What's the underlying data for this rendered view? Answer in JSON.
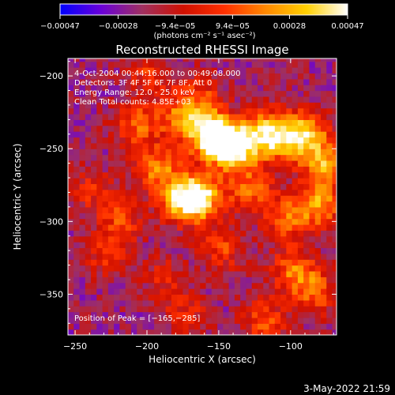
{
  "chart_data": {
    "type": "heatmap",
    "title": "Reconstructed RHESSI Image",
    "xlabel": "Heliocentric X (arcsec)",
    "ylabel": "Heliocentric Y (arcsec)",
    "xlim": [
      -255,
      -68
    ],
    "ylim": [
      -378,
      -188
    ],
    "x_ticks": [
      -250,
      -200,
      -150,
      -100
    ],
    "x_tick_labels": [
      "−250",
      "−200",
      "−150",
      "−100"
    ],
    "y_ticks": [
      -200,
      -250,
      -300,
      -350
    ],
    "y_tick_labels": [
      "−200",
      "−250",
      "−300",
      "−350"
    ],
    "colorbar": {
      "min": -0.00047,
      "max": 0.00047,
      "ticks": [
        -0.00047,
        -0.00028,
        -9.4e-05,
        9.4e-05,
        0.00028,
        0.00047
      ],
      "tick_labels": [
        "−0.00047",
        "−0.00028",
        "−9.4e−05",
        "9.4e−05",
        "0.00028",
        "0.00047"
      ],
      "units_label": "(photons cm⁻² s⁻¹ asec⁻²)",
      "colormap": [
        "#0000ff",
        "#6a00d8",
        "#a03060",
        "#d01000",
        "#ff3000",
        "#ff8800",
        "#ffd000",
        "#ffffff"
      ]
    },
    "info_lines": [
      " 4-Oct-2004 00:44:16.000 to 00:49:08.000",
      "Detectors: 3F 4F 5F 6F 7F 8F, Att 0",
      "Energy Range: 12.0 - 25.0 keV",
      "Clean     Total counts: 4.85E+03"
    ],
    "peak_label": "Position of Peak = [−165,−285]",
    "peak": [
      -165,
      -285
    ],
    "emission_blobs": [
      {
        "x": -165,
        "y": -285,
        "amp": 1.0
      },
      {
        "x": -178,
        "y": -287,
        "amp": 0.8
      },
      {
        "x": -150,
        "y": -247,
        "amp": 0.9
      },
      {
        "x": -160,
        "y": -240,
        "amp": 0.85
      },
      {
        "x": -138,
        "y": -252,
        "amp": 0.8
      },
      {
        "x": -120,
        "y": -240,
        "amp": 0.75
      },
      {
        "x": -105,
        "y": -245,
        "amp": 0.7
      },
      {
        "x": -90,
        "y": -240,
        "amp": 0.65
      },
      {
        "x": -78,
        "y": -262,
        "amp": 0.8
      },
      {
        "x": -82,
        "y": -290,
        "amp": 0.75
      },
      {
        "x": -130,
        "y": -280,
        "amp": 0.6
      },
      {
        "x": -105,
        "y": -300,
        "amp": 0.55
      },
      {
        "x": -100,
        "y": -335,
        "amp": 0.6
      },
      {
        "x": -85,
        "y": -350,
        "amp": 0.55
      },
      {
        "x": -195,
        "y": -265,
        "amp": 0.7
      },
      {
        "x": -210,
        "y": -235,
        "amp": 0.55
      },
      {
        "x": -180,
        "y": -230,
        "amp": 0.6
      },
      {
        "x": -150,
        "y": -320,
        "amp": 0.45
      },
      {
        "x": -120,
        "y": -370,
        "amp": 0.5
      },
      {
        "x": -220,
        "y": -300,
        "amp": 0.45
      },
      {
        "x": -230,
        "y": -325,
        "amp": 0.4
      },
      {
        "x": -240,
        "y": -280,
        "amp": 0.35
      },
      {
        "x": -165,
        "y": -215,
        "amp": 0.4
      },
      {
        "x": -200,
        "y": -200,
        "amp": 0.4
      },
      {
        "x": -175,
        "y": -365,
        "amp": 0.35
      },
      {
        "x": -190,
        "y": -340,
        "amp": 0.3
      }
    ],
    "grid": false
  },
  "footer": {
    "timestamp": "3-May-2022 21:59"
  }
}
